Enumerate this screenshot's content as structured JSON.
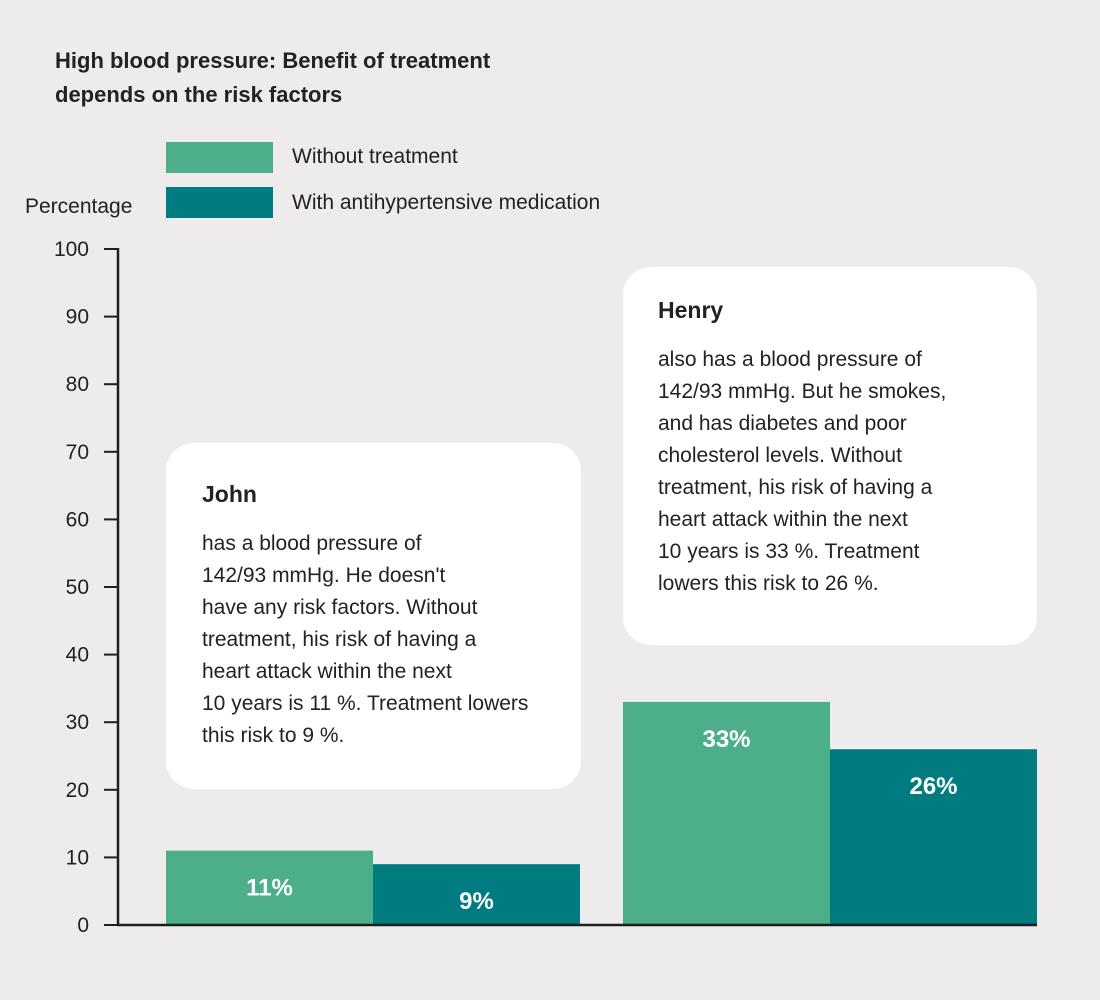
{
  "chart_data": {
    "type": "bar",
    "title_lines": [
      "High blood pressure: Benefit of treatment",
      "depends on the risk factors"
    ],
    "ylabel": "Percentage",
    "ylim": [
      0,
      100
    ],
    "yticks": [
      0,
      10,
      20,
      30,
      40,
      50,
      60,
      70,
      80,
      90,
      100
    ],
    "categories": [
      "John",
      "Henry"
    ],
    "series": [
      {
        "name": "Without treatment",
        "values": [
          11,
          33
        ],
        "labels": [
          "11%",
          "33%"
        ],
        "color": "#4caf89"
      },
      {
        "name": "With antihypertensive medication",
        "values": [
          9,
          26
        ],
        "labels": [
          "9%",
          "26%"
        ],
        "color": "#007c80"
      }
    ],
    "grid": false,
    "legend_position": "top-left"
  },
  "callouts": [
    {
      "name": "John",
      "lines": [
        "has a blood pressure of",
        "142/93 mmHg. He doesn't",
        "have any risk factors. Without",
        "treatment, his risk of having a",
        "heart attack within the next",
        "10 years is 11 %. Treatment lowers",
        "this risk to 9 %."
      ]
    },
    {
      "name": "Henry",
      "lines": [
        "also has a blood pressure of",
        "142/93 mmHg. But he smokes,",
        "and has diabetes and poor",
        "cholesterol levels. Without",
        "treatment, his risk of having a",
        "heart attack within the next",
        "10 years is 33 %. Treatment",
        "lowers this risk to 26 %."
      ]
    }
  ],
  "colors": {
    "background": "#edebeb",
    "axis": "#1e1e1e"
  }
}
